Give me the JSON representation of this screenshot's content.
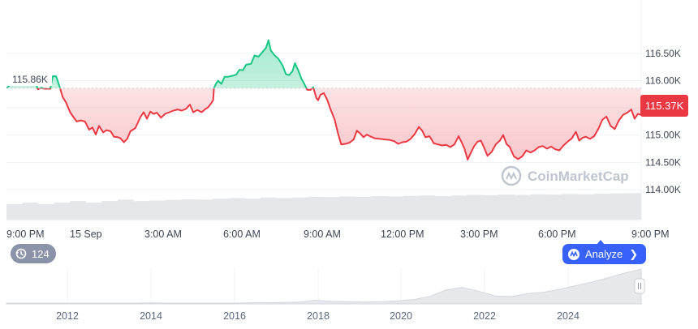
{
  "chart_data": {
    "type": "area",
    "price_axis": {
      "ticks": [
        "116.50K",
        "116.00K",
        "115.50K",
        "115.00K",
        "114.50K",
        "114.00K"
      ],
      "tick_values": [
        116500,
        116000,
        115500,
        115000,
        114500,
        114000
      ],
      "range": [
        113450,
        117300
      ]
    },
    "time_axis": {
      "ticks": [
        "9:00 PM",
        "15 Sep",
        "3:00 AM",
        "6:00 AM",
        "9:00 AM",
        "12:00 PM",
        "3:00 PM",
        "6:00 PM",
        "9:00 PM"
      ],
      "tick_hours": [
        0,
        3,
        6,
        9,
        12,
        15,
        18,
        21,
        24
      ]
    },
    "reference_label": "115.86K",
    "reference_value": 115860,
    "current_label": "115.37K",
    "current_value": 115370,
    "series": [
      {
        "values": [
          [
            0.0,
            115860
          ],
          [
            0.3,
            115950
          ],
          [
            0.55,
            115920
          ],
          [
            0.75,
            116050
          ],
          [
            1.1,
            116050
          ],
          [
            1.3,
            115980
          ],
          [
            1.5,
            116040
          ],
          [
            1.75,
            115970
          ],
          [
            1.9,
            115840
          ],
          [
            2.1,
            115870
          ],
          [
            2.3,
            115850
          ],
          [
            2.65,
            115850
          ],
          [
            2.8,
            116080
          ],
          [
            3.0,
            116080
          ],
          [
            3.1,
            115990
          ],
          [
            3.25,
            115850
          ],
          [
            3.4,
            115700
          ],
          [
            3.6,
            115600
          ],
          [
            3.85,
            115420
          ],
          [
            4.05,
            115330
          ],
          [
            4.25,
            115250
          ],
          [
            4.5,
            115270
          ],
          [
            4.75,
            115250
          ],
          [
            5.0,
            115100
          ],
          [
            5.2,
            115140
          ],
          [
            5.4,
            115010
          ],
          [
            5.6,
            115170
          ],
          [
            5.85,
            115050
          ],
          [
            6.05,
            115090
          ],
          [
            6.3,
            115070
          ],
          [
            6.5,
            114970
          ],
          [
            6.75,
            114960
          ],
          [
            6.9,
            114940
          ],
          [
            7.1,
            114870
          ],
          [
            7.3,
            114930
          ],
          [
            7.5,
            115070
          ],
          [
            7.8,
            115130
          ],
          [
            8.1,
            115330
          ],
          [
            8.3,
            115420
          ],
          [
            8.5,
            115300
          ],
          [
            8.7,
            115430
          ],
          [
            8.9,
            115390
          ],
          [
            9.1,
            115410
          ],
          [
            9.35,
            115320
          ],
          [
            9.6,
            115390
          ],
          [
            9.85,
            115420
          ],
          [
            10.1,
            115450
          ],
          [
            10.35,
            115470
          ],
          [
            10.6,
            115450
          ],
          [
            10.85,
            115480
          ],
          [
            11.1,
            115560
          ],
          [
            11.3,
            115420
          ],
          [
            11.55,
            115460
          ],
          [
            11.8,
            115420
          ],
          [
            12.0,
            115470
          ],
          [
            12.2,
            115510
          ],
          [
            12.35,
            115570
          ],
          [
            12.5,
            115640
          ],
          [
            12.55,
            115860
          ],
          [
            12.65,
            115930
          ],
          [
            12.8,
            116000
          ],
          [
            13.0,
            115940
          ],
          [
            13.2,
            116070
          ],
          [
            13.4,
            116070
          ],
          [
            13.7,
            116090
          ],
          [
            13.9,
            116110
          ],
          [
            14.1,
            116200
          ],
          [
            14.3,
            116190
          ],
          [
            14.5,
            116290
          ],
          [
            14.8,
            116310
          ],
          [
            15.0,
            116460
          ],
          [
            15.25,
            116440
          ],
          [
            15.5,
            116530
          ],
          [
            15.7,
            116600
          ],
          [
            15.85,
            116740
          ],
          [
            16.0,
            116550
          ],
          [
            16.2,
            116470
          ],
          [
            16.45,
            116400
          ],
          [
            16.7,
            116280
          ],
          [
            16.9,
            116120
          ],
          [
            17.1,
            116100
          ],
          [
            17.3,
            116170
          ],
          [
            17.45,
            116320
          ],
          [
            17.65,
            116190
          ],
          [
            17.85,
            116030
          ],
          [
            18.0,
            115950
          ],
          [
            18.2,
            115830
          ],
          [
            18.4,
            115830
          ],
          [
            18.55,
            115880
          ],
          [
            18.75,
            115680
          ],
          [
            18.85,
            115640
          ],
          [
            19.0,
            115740
          ],
          [
            19.2,
            115770
          ],
          [
            19.4,
            115650
          ],
          [
            19.6,
            115480
          ],
          [
            19.85,
            115290
          ],
          [
            20.05,
            115040
          ],
          [
            20.25,
            114830
          ],
          [
            20.5,
            114840
          ],
          [
            20.75,
            114860
          ],
          [
            21.0,
            114920
          ],
          [
            21.2,
            115080
          ],
          [
            21.4,
            115030
          ],
          [
            21.6,
            114960
          ],
          [
            21.8,
            115010
          ],
          [
            22.05,
            114970
          ],
          [
            22.3,
            114940
          ],
          [
            22.6,
            114930
          ],
          [
            22.9,
            114920
          ],
          [
            23.2,
            114910
          ],
          [
            23.45,
            114890
          ],
          [
            23.7,
            114840
          ],
          [
            23.95,
            114870
          ],
          [
            24.2,
            114880
          ],
          [
            24.45,
            114930
          ],
          [
            24.7,
            115020
          ],
          [
            24.95,
            115150
          ],
          [
            25.15,
            115080
          ],
          [
            25.35,
            114960
          ],
          [
            25.6,
            114980
          ],
          [
            25.85,
            114850
          ],
          [
            26.1,
            114830
          ],
          [
            26.35,
            114810
          ],
          [
            26.6,
            114820
          ],
          [
            26.85,
            114780
          ],
          [
            27.1,
            114830
          ],
          [
            27.35,
            114980
          ],
          [
            27.55,
            114860
          ],
          [
            27.7,
            114760
          ],
          [
            27.9,
            114550
          ],
          [
            28.1,
            114680
          ],
          [
            28.3,
            114800
          ],
          [
            28.5,
            114880
          ],
          [
            28.7,
            114900
          ],
          [
            28.9,
            114770
          ],
          [
            29.1,
            114620
          ],
          [
            29.35,
            114690
          ],
          [
            29.6,
            114830
          ],
          [
            29.85,
            114900
          ],
          [
            30.05,
            115000
          ],
          [
            30.25,
            114840
          ],
          [
            30.45,
            114780
          ],
          [
            30.7,
            114610
          ],
          [
            30.95,
            114560
          ],
          [
            31.2,
            114610
          ],
          [
            31.45,
            114720
          ],
          [
            31.7,
            114680
          ],
          [
            31.95,
            114720
          ],
          [
            32.2,
            114780
          ],
          [
            32.45,
            114800
          ],
          [
            32.7,
            114750
          ],
          [
            32.95,
            114790
          ],
          [
            33.2,
            114740
          ],
          [
            33.45,
            114720
          ],
          [
            33.7,
            114810
          ],
          [
            33.95,
            114880
          ],
          [
            34.2,
            114940
          ],
          [
            34.45,
            115060
          ],
          [
            34.65,
            114900
          ],
          [
            34.85,
            114950
          ],
          [
            35.05,
            114970
          ],
          [
            35.3,
            114930
          ],
          [
            35.55,
            114980
          ],
          [
            35.8,
            115110
          ],
          [
            36.05,
            115280
          ],
          [
            36.3,
            115340
          ],
          [
            36.55,
            115170
          ],
          [
            36.8,
            115110
          ],
          [
            37.05,
            115270
          ],
          [
            37.3,
            115370
          ],
          [
            37.55,
            115410
          ],
          [
            37.8,
            115470
          ],
          [
            38.0,
            115300
          ],
          [
            38.2,
            115390
          ],
          [
            38.4,
            115370
          ]
        ]
      }
    ],
    "volume_heights": [
      0.5,
      0.55,
      0.5,
      0.55,
      0.6,
      0.55,
      0.6,
      0.65,
      0.6,
      0.62,
      0.64,
      0.66,
      0.65,
      0.68,
      0.7,
      0.68,
      0.72,
      0.7,
      0.72,
      0.74,
      0.73,
      0.75,
      0.74,
      0.76,
      0.75,
      0.77,
      0.78,
      0.76,
      0.78,
      0.8,
      0.79,
      0.81,
      0.8,
      0.82,
      0.81,
      0.83,
      0.82,
      0.84,
      0.85,
      0.86
    ],
    "mini_chart": {
      "type": "area",
      "x_ticks": [
        "2012",
        "2014",
        "2016",
        "2018",
        "2020",
        "2022",
        "2024"
      ],
      "values": [
        0.02,
        0.02,
        0.02,
        0.02,
        0.02,
        0.02,
        0.02,
        0.02,
        0.02,
        0.03,
        0.02,
        0.02,
        0.02,
        0.02,
        0.02,
        0.03,
        0.03,
        0.04,
        0.05,
        0.1,
        0.07,
        0.06,
        0.05,
        0.06,
        0.08,
        0.12,
        0.2,
        0.38,
        0.45,
        0.35,
        0.22,
        0.2,
        0.28,
        0.32,
        0.4,
        0.5,
        0.6,
        0.72,
        0.85,
        0.95
      ]
    },
    "colors": {
      "up": "#16c784",
      "down": "#ea3943",
      "grid": "#eff2f5",
      "axis_text": "#58667e",
      "reference_line": "#c8ccd4",
      "volume": "#e4e6ea",
      "mini_fill": "#e6e8ec"
    }
  },
  "watermark": {
    "brand": "CoinMarketCap",
    "icon": "coinmarketcap-logo-icon"
  },
  "history_badge": {
    "count": "124",
    "icon": "history-clock-icon"
  },
  "analyze_button": {
    "label": "Analyze",
    "icon": "coinmarketcap-logo-icon"
  }
}
